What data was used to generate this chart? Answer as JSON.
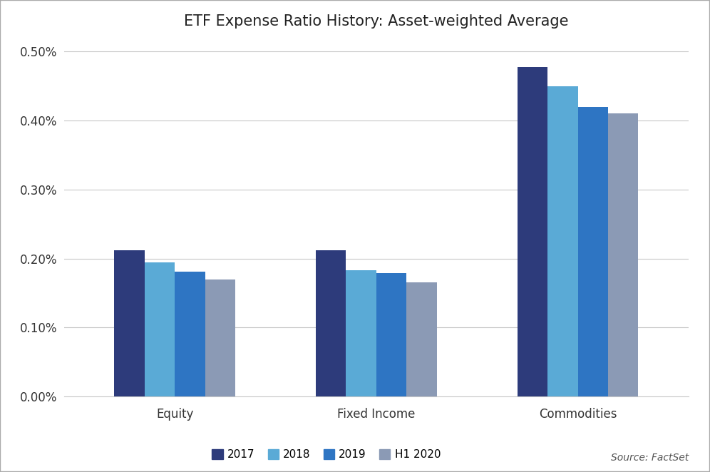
{
  "title": "ETF Expense Ratio History: Asset-weighted Average",
  "categories": [
    "Equity",
    "Fixed Income",
    "Commodities"
  ],
  "series": {
    "2017": [
      0.00212,
      0.00212,
      0.00478
    ],
    "2018": [
      0.00194,
      0.00183,
      0.0045
    ],
    "2019": [
      0.00181,
      0.00179,
      0.0042
    ],
    "H1 2020": [
      0.0017,
      0.00165,
      0.0041
    ]
  },
  "colors": {
    "2017": "#2D3B7B",
    "2018": "#5AAAD6",
    "2019": "#2E75C3",
    "H1 2020": "#8B9AB5"
  },
  "ylim": [
    0,
    0.0052
  ],
  "yticks": [
    0.0,
    0.001,
    0.002,
    0.003,
    0.004,
    0.005
  ],
  "ytick_labels": [
    "0.00%",
    "0.10%",
    "0.20%",
    "0.30%",
    "0.40%",
    "0.50%"
  ],
  "source_text": "Source: FactSet",
  "background_color": "#FFFFFF",
  "grid_color": "#C8C8C8",
  "bar_width": 0.15,
  "border_color": "#AAAAAA"
}
